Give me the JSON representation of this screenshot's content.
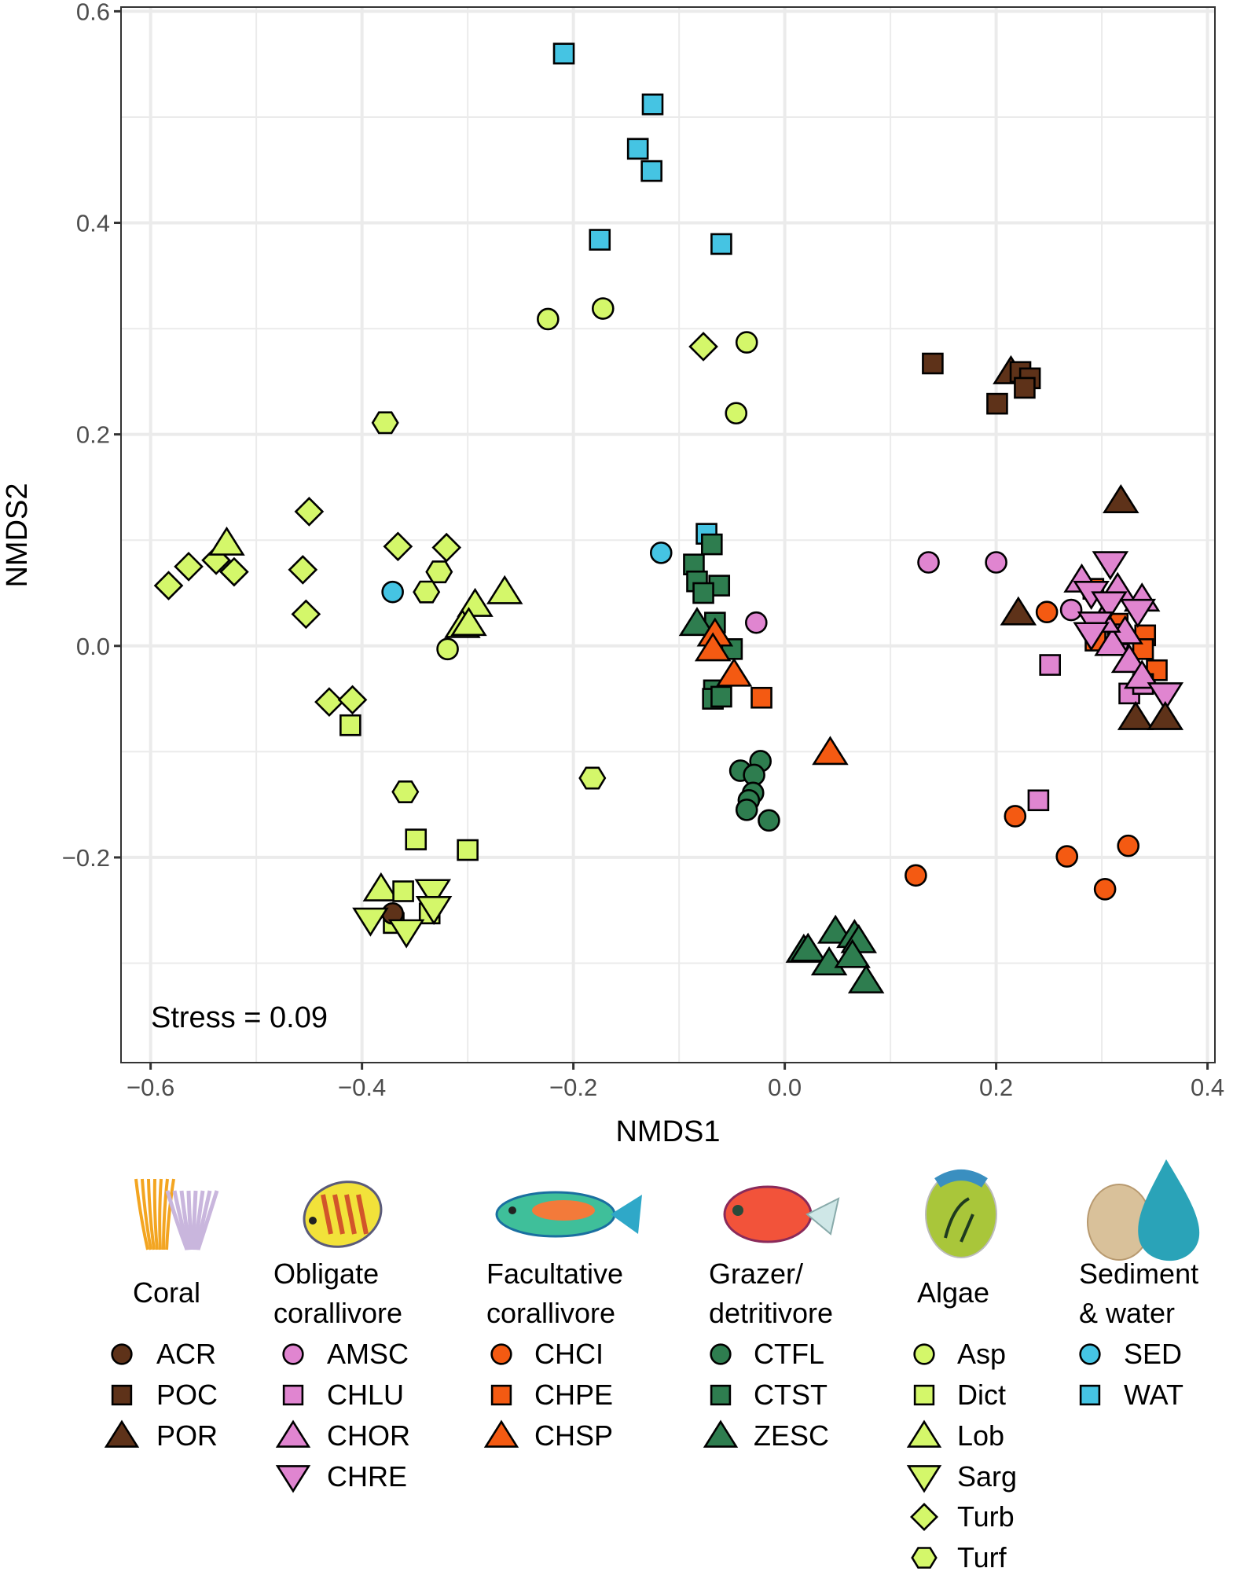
{
  "chart_data": {
    "type": "scatter",
    "title": "",
    "xlabel": "NMDS1",
    "ylabel": "NMDS2",
    "xlim": [
      -0.628,
      0.407
    ],
    "ylim": [
      -0.394,
      0.604
    ],
    "grid": true,
    "x_ticks": [
      -0.6,
      -0.4,
      -0.2,
      0.0,
      0.2,
      0.4
    ],
    "x_tick_labels": [
      "−0.6",
      "−0.4",
      "−0.2",
      "0.0",
      "0.2",
      "0.4"
    ],
    "y_ticks": [
      0.6,
      0.4,
      0.2,
      0.0,
      -0.2
    ],
    "y_tick_labels": [
      "0.6",
      "0.4",
      "0.2",
      "0.0",
      "−0.2"
    ],
    "annotation": "Stress = 0.09",
    "legend_placement": "bottom",
    "series": [
      {
        "name": "WAT",
        "group": "Sediment & water",
        "shape": "square",
        "color": "#45c4e3",
        "points": [
          [
            -0.209,
            0.56
          ],
          [
            -0.125,
            0.512
          ],
          [
            -0.139,
            0.47
          ],
          [
            -0.126,
            0.449
          ],
          [
            -0.175,
            0.384
          ],
          [
            -0.06,
            0.38
          ],
          [
            -0.074,
            0.106
          ]
        ]
      },
      {
        "name": "Asp",
        "group": "Algae",
        "shape": "circle",
        "color": "#d4f76a",
        "points": [
          [
            -0.224,
            0.309
          ],
          [
            -0.172,
            0.319
          ],
          [
            -0.036,
            0.287
          ],
          [
            -0.046,
            0.22
          ],
          [
            -0.319,
            -0.003
          ]
        ]
      },
      {
        "name": "Turb",
        "group": "Algae",
        "shape": "diamond",
        "color": "#d4f76a",
        "points": [
          [
            -0.077,
            0.283
          ],
          [
            -0.45,
            0.127
          ],
          [
            -0.456,
            0.072
          ],
          [
            -0.453,
            0.03
          ],
          [
            -0.366,
            0.094
          ],
          [
            -0.32,
            0.093
          ],
          [
            -0.583,
            0.057
          ],
          [
            -0.564,
            0.075
          ],
          [
            -0.538,
            0.081
          ],
          [
            -0.521,
            0.07
          ],
          [
            -0.431,
            -0.053
          ],
          [
            -0.409,
            -0.051
          ]
        ]
      },
      {
        "name": "Turf",
        "group": "Algae",
        "shape": "hexagon",
        "color": "#d4f76a",
        "points": [
          [
            -0.378,
            0.211
          ],
          [
            -0.327,
            0.07
          ],
          [
            -0.339,
            0.051
          ],
          [
            -0.359,
            -0.138
          ],
          [
            -0.182,
            -0.125
          ]
        ]
      },
      {
        "name": "Lob",
        "group": "Algae",
        "shape": "triangle",
        "color": "#d4f76a",
        "points": [
          [
            -0.528,
            0.097
          ],
          [
            -0.265,
            0.051
          ],
          [
            -0.293,
            0.039
          ],
          [
            -0.305,
            0.019
          ],
          [
            -0.299,
            0.021
          ],
          [
            -0.382,
            -0.23
          ]
        ]
      },
      {
        "name": "Dict",
        "group": "Algae",
        "shape": "square",
        "color": "#d4f76a",
        "points": [
          [
            -0.411,
            -0.075
          ],
          [
            -0.349,
            -0.183
          ],
          [
            -0.3,
            -0.193
          ],
          [
            -0.361,
            -0.232
          ],
          [
            -0.336,
            -0.253
          ],
          [
            -0.37,
            -0.262
          ]
        ]
      },
      {
        "name": "ACR",
        "group": "Coral",
        "shape": "circle",
        "color": "#5e3219",
        "points": [
          [
            -0.371,
            -0.253
          ]
        ]
      },
      {
        "name": "Sarg",
        "group": "Algae",
        "shape": "triangle-down",
        "color": "#d4f76a",
        "points": [
          [
            -0.333,
            -0.232
          ],
          [
            -0.332,
            -0.248
          ],
          [
            -0.392,
            -0.259
          ],
          [
            -0.358,
            -0.27
          ]
        ]
      },
      {
        "name": "SED",
        "group": "Sediment & water",
        "shape": "circle",
        "color": "#45c4e3",
        "points": [
          [
            -0.117,
            0.088
          ],
          [
            -0.371,
            0.051
          ]
        ]
      },
      {
        "name": "CTST",
        "group": "Grazer/ detritivore",
        "shape": "square",
        "color": "#2e7d4f",
        "points": [
          [
            -0.069,
            0.096
          ],
          [
            -0.086,
            0.077
          ],
          [
            -0.083,
            0.061
          ],
          [
            -0.062,
            0.057
          ],
          [
            -0.077,
            0.05
          ],
          [
            -0.066,
            0.022
          ],
          [
            -0.05,
            -0.003
          ],
          [
            -0.067,
            -0.042
          ],
          [
            -0.068,
            -0.05
          ],
          [
            -0.06,
            -0.048
          ]
        ]
      },
      {
        "name": "CTFL",
        "group": "Grazer/ detritivore",
        "shape": "circle",
        "color": "#2e7d4f",
        "points": [
          [
            -0.023,
            -0.109
          ],
          [
            -0.042,
            -0.118
          ],
          [
            -0.029,
            -0.122
          ],
          [
            -0.03,
            -0.139
          ],
          [
            -0.034,
            -0.146
          ],
          [
            -0.036,
            -0.155
          ],
          [
            -0.015,
            -0.165
          ]
        ]
      },
      {
        "name": "ZESC",
        "group": "Grazer/ detritivore",
        "shape": "triangle",
        "color": "#2e7d4f",
        "points": [
          [
            -0.083,
            0.021
          ],
          [
            0.018,
            -0.288
          ],
          [
            0.022,
            -0.287
          ],
          [
            0.048,
            -0.27
          ],
          [
            0.066,
            -0.274
          ],
          [
            0.07,
            -0.279
          ],
          [
            0.042,
            -0.3
          ],
          [
            0.064,
            -0.293
          ],
          [
            0.077,
            -0.317
          ]
        ]
      },
      {
        "name": "CHSP",
        "group": "Facultative corallivore",
        "shape": "triangle",
        "color": "#f45a12",
        "points": [
          [
            -0.066,
            0.011
          ],
          [
            -0.068,
            -0.003
          ],
          [
            -0.048,
            -0.027
          ],
          [
            0.043,
            -0.101
          ]
        ]
      },
      {
        "name": "CHPE",
        "group": "Facultative corallivore",
        "shape": "square",
        "color": "#f45a12",
        "points": [
          [
            -0.022,
            -0.049
          ],
          [
            0.292,
            0.054
          ],
          [
            0.294,
            0.005
          ],
          [
            0.341,
            0.01
          ],
          [
            0.339,
            -0.003
          ],
          [
            0.352,
            -0.023
          ],
          [
            0.315,
            0.021
          ]
        ]
      },
      {
        "name": "CHCI",
        "group": "Facultative corallivore",
        "shape": "circle",
        "color": "#f45a12",
        "points": [
          [
            0.248,
            0.032
          ],
          [
            0.124,
            -0.217
          ],
          [
            0.218,
            -0.161
          ],
          [
            0.267,
            -0.199
          ],
          [
            0.303,
            -0.23
          ],
          [
            0.325,
            -0.189
          ]
        ]
      },
      {
        "name": "AMSC",
        "group": "Obligate corallivore",
        "shape": "circle",
        "color": "#e085d0",
        "points": [
          [
            0.136,
            0.079
          ],
          [
            0.2,
            0.079
          ],
          [
            -0.027,
            0.022
          ],
          [
            0.271,
            0.034
          ],
          [
            0.315,
            0.002
          ]
        ]
      },
      {
        "name": "CHLU",
        "group": "Obligate corallivore",
        "shape": "square",
        "color": "#e085d0",
        "points": [
          [
            0.251,
            -0.018
          ],
          [
            0.24,
            -0.146
          ],
          [
            0.326,
            -0.045
          ],
          [
            0.339,
            -0.036
          ],
          [
            0.315,
            0.011
          ]
        ]
      },
      {
        "name": "CHOR",
        "group": "Obligate corallivore",
        "shape": "triangle",
        "color": "#e085d0",
        "points": [
          [
            0.281,
            0.062
          ],
          [
            0.315,
            0.054
          ],
          [
            0.338,
            0.044
          ],
          [
            0.322,
            0.013
          ],
          [
            0.31,
            0.002
          ],
          [
            0.326,
            -0.014
          ],
          [
            0.338,
            -0.029
          ],
          [
            0.301,
            0.024
          ]
        ]
      },
      {
        "name": "CHRE",
        "group": "Obligate corallivore",
        "shape": "triangle-down",
        "color": "#e085d0",
        "points": [
          [
            0.308,
            0.078
          ],
          [
            0.29,
            0.05
          ],
          [
            0.307,
            0.04
          ],
          [
            0.334,
            0.033
          ],
          [
            0.294,
            0.021
          ],
          [
            0.29,
            0.011
          ],
          [
            0.36,
            -0.046
          ]
        ]
      },
      {
        "name": "POR",
        "group": "Coral",
        "shape": "triangle",
        "color": "#5e3219",
        "points": [
          [
            0.318,
            0.137
          ],
          [
            0.221,
            0.031
          ],
          [
            0.332,
            -0.068
          ],
          [
            0.36,
            -0.068
          ],
          [
            0.214,
            0.259
          ]
        ]
      },
      {
        "name": "POC",
        "group": "Coral",
        "shape": "square",
        "color": "#5e3219",
        "points": [
          [
            0.14,
            0.267
          ],
          [
            0.201,
            0.229
          ],
          [
            0.223,
            0.259
          ],
          [
            0.232,
            0.253
          ],
          [
            0.227,
            0.244
          ]
        ]
      }
    ]
  },
  "legend": {
    "groups": [
      {
        "title": [
          "Coral"
        ],
        "icon": "coral-icon",
        "items": [
          {
            "label": "ACR",
            "shape": "circle",
            "color": "#5e3219"
          },
          {
            "label": "POC",
            "shape": "square",
            "color": "#5e3219"
          },
          {
            "label": "POR",
            "shape": "triangle",
            "color": "#5e3219"
          }
        ]
      },
      {
        "title": [
          "Obligate",
          "corallivore"
        ],
        "icon": "butterflyfish-icon",
        "items": [
          {
            "label": "AMSC",
            "shape": "circle",
            "color": "#e085d0"
          },
          {
            "label": "CHLU",
            "shape": "square",
            "color": "#e085d0"
          },
          {
            "label": "CHOR",
            "shape": "triangle",
            "color": "#e085d0"
          },
          {
            "label": "CHRE",
            "shape": "triangle-down",
            "color": "#e085d0"
          }
        ]
      },
      {
        "title": [
          "Facultative",
          "corallivore"
        ],
        "icon": "parrotfish-icon",
        "items": [
          {
            "label": "CHCI",
            "shape": "circle",
            "color": "#f45a12"
          },
          {
            "label": "CHPE",
            "shape": "square",
            "color": "#f45a12"
          },
          {
            "label": "CHSP",
            "shape": "triangle",
            "color": "#f45a12"
          }
        ]
      },
      {
        "title": [
          "Grazer/",
          "detritivore"
        ],
        "icon": "squirrelfish-icon",
        "items": [
          {
            "label": "CTFL",
            "shape": "circle",
            "color": "#2e7d4f"
          },
          {
            "label": "CTST",
            "shape": "square",
            "color": "#2e7d4f"
          },
          {
            "label": "ZESC",
            "shape": "triangle",
            "color": "#2e7d4f"
          }
        ]
      },
      {
        "title": [
          "Algae"
        ],
        "icon": "algae-icon",
        "items": [
          {
            "label": "Asp",
            "shape": "circle",
            "color": "#d4f76a"
          },
          {
            "label": "Dict",
            "shape": "square",
            "color": "#d4f76a"
          },
          {
            "label": "Lob",
            "shape": "triangle",
            "color": "#d4f76a"
          },
          {
            "label": "Sarg",
            "shape": "triangle-down",
            "color": "#d4f76a"
          },
          {
            "label": "Turb",
            "shape": "diamond",
            "color": "#d4f76a"
          },
          {
            "label": "Turf",
            "shape": "hexagon",
            "color": "#d4f76a"
          }
        ]
      },
      {
        "title": [
          "Sediment",
          "& water"
        ],
        "icon": "sediment-water-icon",
        "items": [
          {
            "label": "SED",
            "shape": "circle",
            "color": "#45c4e3"
          },
          {
            "label": "WAT",
            "shape": "square",
            "color": "#45c4e3"
          }
        ]
      }
    ]
  }
}
